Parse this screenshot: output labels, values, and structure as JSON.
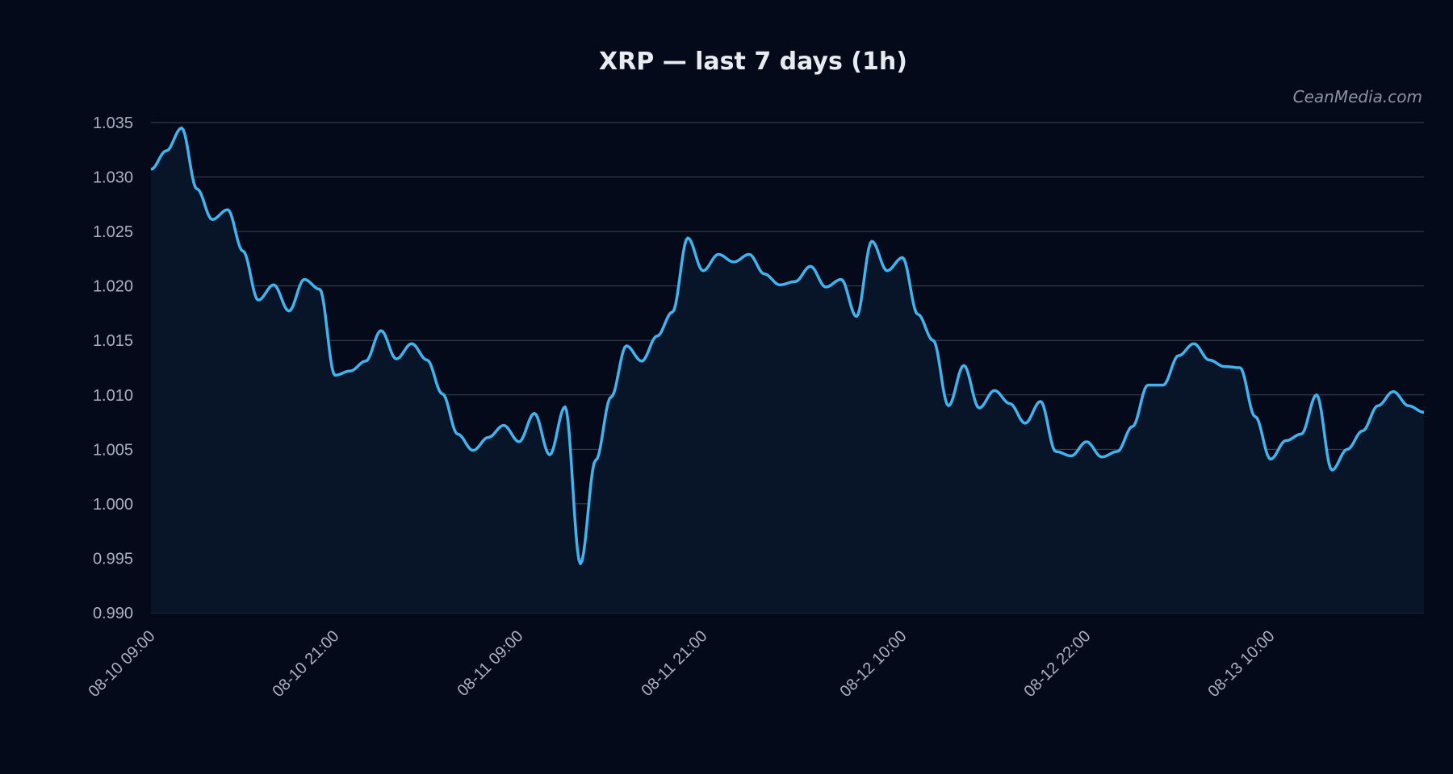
{
  "chart_data": {
    "type": "area",
    "title": "XRP — last 7 days (1h)",
    "watermark": "CeanMedia.com",
    "xlabel": "",
    "ylabel": "",
    "ylim": [
      0.99,
      1.035
    ],
    "yticks": [
      "0.990",
      "0.995",
      "1.000",
      "1.005",
      "1.010",
      "1.015",
      "1.020",
      "1.025",
      "1.030",
      "1.035"
    ],
    "xticks": [
      "08-10 09:00",
      "08-10 21:00",
      "08-11 09:00",
      "08-11 21:00",
      "08-12 10:00",
      "08-12 22:00",
      "08-13 10:00"
    ],
    "grid": true,
    "colors": {
      "line": "#3fb4ef",
      "fill": "#081529",
      "background": "#050a1a",
      "grid": "#3a4556"
    },
    "x_start": "08-10 09:00",
    "x_interval": "1h",
    "series": [
      {
        "values": [
          1.0307,
          1.0324,
          1.0345,
          1.0289,
          1.0261,
          1.027,
          1.0232,
          1.0187,
          1.0201,
          1.0177,
          1.0206,
          1.0197,
          1.0118,
          1.0122,
          1.0131,
          1.0159,
          1.0133,
          1.0147,
          1.0132,
          1.0101,
          1.0064,
          1.0049,
          1.0061,
          1.0072,
          1.0057,
          1.0083,
          1.0045,
          1.0089,
          0.9945,
          1.004,
          1.0098,
          1.0145,
          1.0131,
          1.0154,
          1.0176,
          1.0244,
          1.0214,
          1.0229,
          1.0222,
          1.0229,
          1.0211,
          1.0201,
          1.0204,
          1.0218,
          1.0199,
          1.0206,
          1.0172,
          1.0241,
          1.0214,
          1.0226,
          1.0174,
          1.015,
          1.009,
          1.0127,
          1.0088,
          1.0104,
          1.0092,
          1.0074,
          1.0094,
          1.0048,
          1.0044,
          1.0057,
          1.0043,
          1.0048,
          1.0071,
          1.0109,
          1.0109,
          1.0136,
          1.0147,
          1.0132,
          1.0126,
          1.0125,
          1.008,
          1.0041,
          1.0058,
          1.0064,
          1.01,
          1.0031,
          1.005,
          1.0067,
          1.009,
          1.0103,
          1.009,
          1.0084
        ]
      }
    ]
  }
}
